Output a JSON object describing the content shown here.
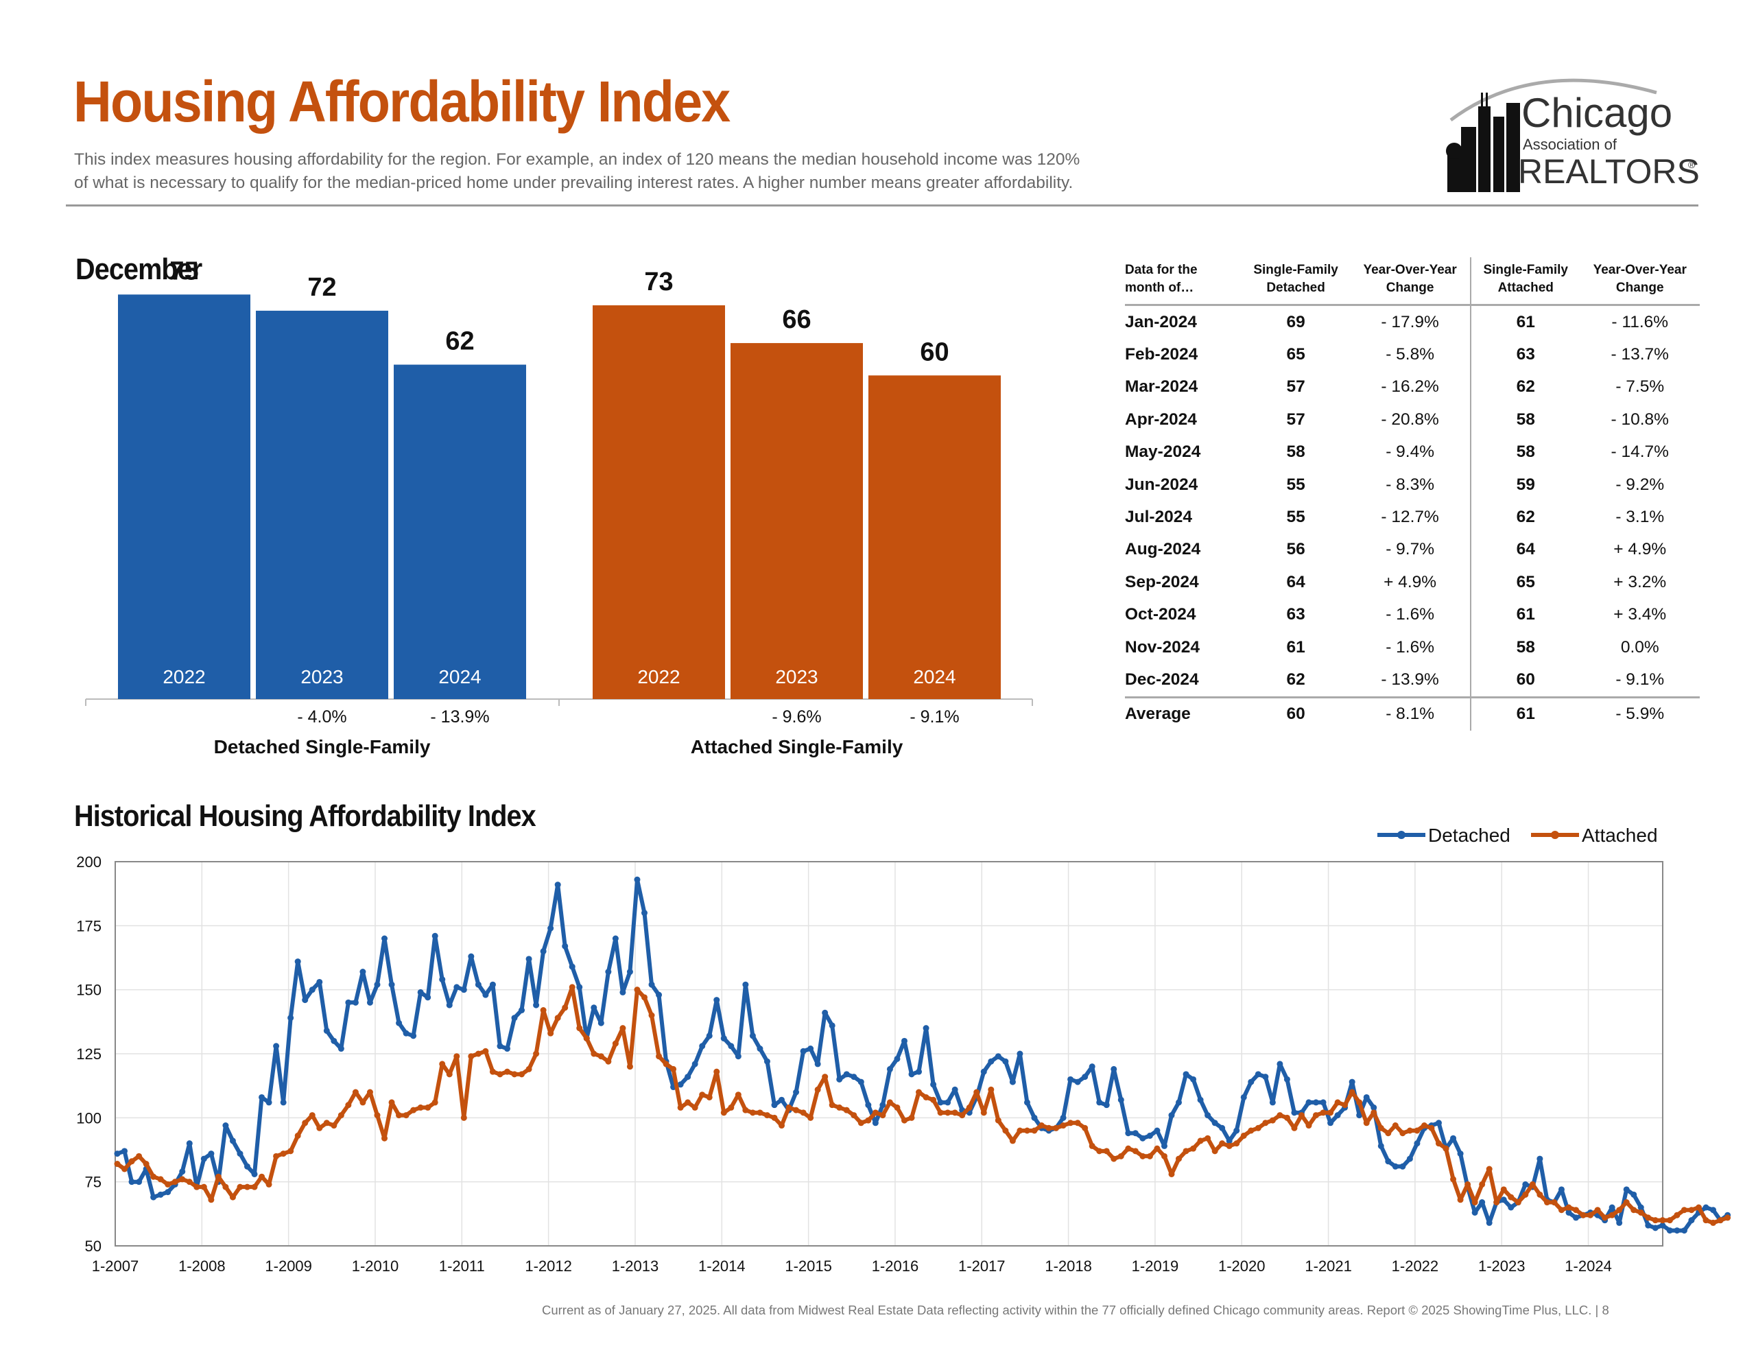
{
  "header": {
    "title": "Housing Affordability Index",
    "description_line1": "This index measures housing affordability for the region. For example, an index of 120 means the median household income was 120%",
    "description_line2": "of what is necessary to qualify for the median-priced home under prevailing interest rates. A higher number means greater affordability.",
    "logo": {
      "line1": "Chicago",
      "line2": "Association of",
      "line3": "REALTORS",
      "mark": "®"
    }
  },
  "month_section": {
    "title": "December"
  },
  "colors": {
    "detached": "#1f5ea8",
    "attached": "#c4510e",
    "title": "#c4510e"
  },
  "chart_data": [
    {
      "type": "bar",
      "title": "Detached Single-Family",
      "categories": [
        "2022",
        "2023",
        "2024"
      ],
      "values": [
        75,
        72,
        62
      ],
      "value_labels": [
        "75",
        "72",
        "62"
      ],
      "changes": [
        "",
        "- 4.0%",
        "- 13.9%"
      ],
      "ylim": [
        0,
        80
      ]
    },
    {
      "type": "bar",
      "title": "Attached Single-Family",
      "categories": [
        "2022",
        "2023",
        "2024"
      ],
      "values": [
        73,
        66,
        60
      ],
      "value_labels": [
        "73",
        "66",
        "60"
      ],
      "changes": [
        "",
        "- 9.6%",
        "- 9.1%"
      ],
      "ylim": [
        0,
        80
      ]
    },
    {
      "type": "table",
      "columns": [
        "Data for the month of…",
        "Single-Family Detached",
        "Year-Over-Year Change",
        "Single-Family Attached",
        "Year-Over-Year Change"
      ],
      "rows": [
        [
          "Jan-2024",
          "69",
          "- 17.9%",
          "61",
          "- 11.6%"
        ],
        [
          "Feb-2024",
          "65",
          "- 5.8%",
          "63",
          "- 13.7%"
        ],
        [
          "Mar-2024",
          "57",
          "- 16.2%",
          "62",
          "- 7.5%"
        ],
        [
          "Apr-2024",
          "57",
          "- 20.8%",
          "58",
          "- 10.8%"
        ],
        [
          "May-2024",
          "58",
          "- 9.4%",
          "58",
          "- 14.7%"
        ],
        [
          "Jun-2024",
          "55",
          "- 8.3%",
          "59",
          "- 9.2%"
        ],
        [
          "Jul-2024",
          "55",
          "- 12.7%",
          "62",
          "- 3.1%"
        ],
        [
          "Aug-2024",
          "56",
          "- 9.7%",
          "64",
          "+ 4.9%"
        ],
        [
          "Sep-2024",
          "64",
          "+ 4.9%",
          "65",
          "+ 3.2%"
        ],
        [
          "Oct-2024",
          "63",
          "- 1.6%",
          "61",
          "+ 3.4%"
        ],
        [
          "Nov-2024",
          "61",
          "- 1.6%",
          "58",
          "0.0%"
        ],
        [
          "Dec-2024",
          "62",
          "- 13.9%",
          "60",
          "- 9.1%"
        ]
      ],
      "average": [
        "Average",
        "60",
        "- 8.1%",
        "61",
        "- 5.9%"
      ]
    },
    {
      "type": "line",
      "title": "Historical Housing Affordability Index",
      "legend": [
        "Detached",
        "Attached"
      ],
      "legend_position": "top-right",
      "grid": true,
      "ylim": [
        50,
        200
      ],
      "yticks": [
        50,
        75,
        100,
        125,
        150,
        175,
        200
      ],
      "xticks": [
        "1-2007",
        "1-2008",
        "1-2009",
        "1-2010",
        "1-2011",
        "1-2012",
        "1-2013",
        "1-2014",
        "1-2015",
        "1-2016",
        "1-2017",
        "1-2018",
        "1-2019",
        "1-2020",
        "1-2021",
        "1-2022",
        "1-2023",
        "1-2024"
      ],
      "x_start": "2007-01",
      "x_end": "2024-12",
      "series": [
        {
          "name": "Detached",
          "values": [
            86,
            87,
            75,
            75,
            80,
            69,
            70,
            71,
            74,
            79,
            90,
            73,
            84,
            86,
            75,
            97,
            91,
            86,
            81,
            78,
            108,
            106,
            128,
            106,
            139,
            161,
            146,
            150,
            153,
            134,
            130,
            127,
            145,
            145,
            157,
            145,
            152,
            170,
            152,
            137,
            133,
            132,
            149,
            147,
            171,
            154,
            144,
            151,
            150,
            163,
            152,
            148,
            152,
            128,
            127,
            139,
            142,
            162,
            144,
            165,
            174,
            191,
            167,
            159,
            151,
            131,
            143,
            137,
            157,
            170,
            149,
            157,
            193,
            180,
            152,
            148,
            122,
            112,
            113,
            116,
            121,
            128,
            132,
            146,
            131,
            128,
            124,
            152,
            132,
            127,
            122,
            105,
            107,
            103,
            110,
            126,
            127,
            121,
            141,
            136,
            115,
            117,
            116,
            114,
            105,
            98,
            105,
            119,
            123,
            130,
            117,
            118,
            135,
            113,
            106,
            106,
            111,
            103,
            102,
            108,
            118,
            122,
            124,
            122,
            114,
            125,
            106,
            100,
            96,
            95,
            96,
            100,
            115,
            114,
            116,
            120,
            106,
            105,
            119,
            107,
            94,
            94,
            92,
            93,
            95,
            89,
            101,
            106,
            117,
            115,
            107,
            101,
            98,
            96,
            91,
            95,
            108,
            114,
            117,
            116,
            106,
            121,
            115,
            102,
            102,
            106,
            106,
            106,
            98,
            101,
            104,
            114,
            101,
            108,
            104,
            89,
            83,
            81,
            81,
            84,
            90,
            96,
            97,
            98,
            88,
            92,
            86,
            73,
            63,
            67,
            59,
            67,
            68,
            65,
            67,
            74,
            73,
            84,
            68,
            67,
            72,
            63,
            61,
            62,
            63,
            62,
            60,
            65,
            59,
            72,
            70,
            65,
            58,
            57,
            58,
            56,
            56,
            56,
            60,
            63,
            65,
            64,
            60,
            62
          ]
        },
        {
          "name": "Attached",
          "values": [
            82,
            80,
            83,
            85,
            82,
            77,
            76,
            74,
            75,
            76,
            75,
            73,
            73,
            68,
            77,
            73,
            69,
            73,
            73,
            73,
            77,
            74,
            85,
            86,
            87,
            93,
            98,
            101,
            96,
            98,
            97,
            101,
            105,
            110,
            106,
            110,
            101,
            92,
            106,
            101,
            101,
            103,
            104,
            104,
            106,
            121,
            117,
            124,
            100,
            124,
            125,
            126,
            118,
            117,
            118,
            117,
            117,
            119,
            125,
            142,
            133,
            139,
            143,
            151,
            135,
            131,
            125,
            124,
            122,
            129,
            135,
            120,
            150,
            147,
            140,
            124,
            121,
            119,
            104,
            106,
            104,
            109,
            108,
            118,
            102,
            104,
            109,
            103,
            102,
            102,
            101,
            100,
            97,
            104,
            103,
            102,
            100,
            111,
            116,
            105,
            104,
            103,
            101,
            98,
            99,
            102,
            101,
            106,
            104,
            99,
            100,
            110,
            108,
            107,
            102,
            102,
            102,
            101,
            104,
            110,
            102,
            111,
            99,
            95,
            91,
            95,
            95,
            95,
            97,
            96,
            96,
            97,
            98,
            98,
            96,
            89,
            87,
            87,
            84,
            85,
            88,
            87,
            85,
            85,
            88,
            85,
            78,
            84,
            87,
            88,
            91,
            92,
            87,
            90,
            89,
            90,
            93,
            95,
            96,
            98,
            99,
            101,
            100,
            96,
            101,
            97,
            101,
            102,
            102,
            106,
            105,
            110,
            106,
            98,
            102,
            96,
            94,
            97,
            94,
            95,
            95,
            97,
            96,
            90,
            88,
            76,
            68,
            74,
            67,
            74,
            80,
            67,
            72,
            69,
            67,
            70,
            74,
            70,
            67,
            67,
            64,
            65,
            64,
            62,
            62,
            64,
            61,
            62,
            64,
            67,
            64,
            63,
            61,
            60,
            60,
            60,
            62,
            64,
            64,
            65,
            60,
            59,
            60,
            61
          ]
        }
      ]
    }
  ],
  "footer": {
    "text": "Current as of January 27, 2025.  All data from Midwest Real Estate Data reflecting activity within the 77 officially defined Chicago community areas. Report © 2025 ShowingTime Plus, LLC.  |  8"
  }
}
